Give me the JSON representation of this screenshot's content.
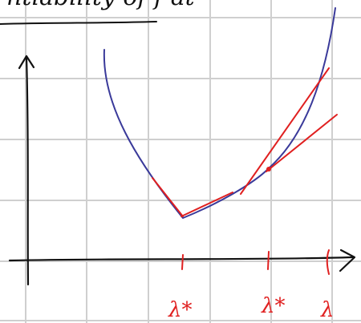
{
  "header": {
    "title": "ntiability of f at"
  },
  "labels": {
    "lambda_star_1": "λ*",
    "lambda_star_2": "λ*",
    "lambda": "λ"
  }
}
